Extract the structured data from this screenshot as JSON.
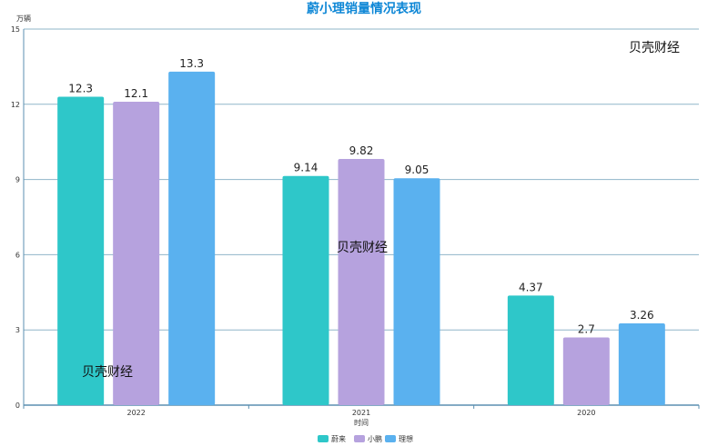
{
  "chart_data": {
    "type": "bar",
    "title": "蔚小理销量情况表现",
    "ylabel": "万辆",
    "xlabel": "时间",
    "categories": [
      "2022",
      "2021",
      "2020"
    ],
    "ylim": [
      0,
      15
    ],
    "yticks": [
      0,
      3,
      6,
      9,
      12,
      15
    ],
    "grid": true,
    "legend_position": "bottom",
    "series": [
      {
        "name": "蔚来",
        "color": "#2ec7c9",
        "values": [
          12.3,
          9.14,
          4.37
        ]
      },
      {
        "name": "小鹏",
        "color": "#b6a2de",
        "values": [
          12.1,
          9.82,
          2.7
        ]
      },
      {
        "name": "理想",
        "color": "#5ab1ef",
        "values": [
          13.3,
          9.05,
          3.26
        ]
      }
    ]
  },
  "colors": {
    "title": "#0e87d6",
    "grid": "#8fb5c9",
    "axis": "#5b8fb0"
  },
  "watermark": "贝壳财经"
}
